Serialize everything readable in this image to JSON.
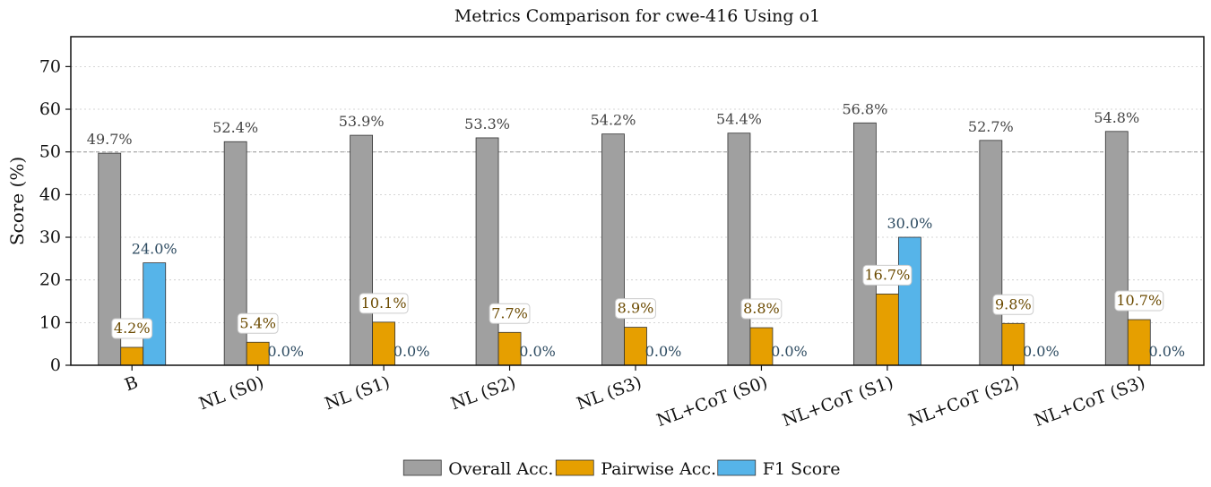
{
  "chart_data": {
    "type": "bar",
    "title": "Metrics Comparison for cwe-416 Using o1",
    "xlabel": "",
    "ylabel": "Score (%)",
    "ylim": [
      0,
      77
    ],
    "yticks": [
      0,
      10,
      20,
      30,
      40,
      50,
      60,
      70
    ],
    "grid": "horizontal dotted",
    "reference_line": 50,
    "legend_position": "bottom-center",
    "categories": [
      "B",
      "NL (S0)",
      "NL (S1)",
      "NL (S2)",
      "NL (S3)",
      "NL+CoT (S0)",
      "NL+CoT (S1)",
      "NL+CoT (S2)",
      "NL+CoT (S3)"
    ],
    "series": [
      {
        "name": "Overall Acc.",
        "color": "#a0a0a0",
        "values": [
          49.7,
          52.4,
          53.9,
          53.3,
          54.2,
          54.4,
          56.8,
          52.7,
          54.8
        ],
        "labels": [
          "49.7%",
          "52.4%",
          "53.9%",
          "53.3%",
          "54.2%",
          "54.4%",
          "56.8%",
          "52.7%",
          "54.8%"
        ]
      },
      {
        "name": "Pairwise Acc.",
        "color": "#e69f00",
        "values": [
          4.2,
          5.4,
          10.1,
          7.7,
          8.9,
          8.8,
          16.7,
          9.8,
          10.7
        ],
        "labels": [
          "4.2%",
          "5.4%",
          "10.1%",
          "7.7%",
          "8.9%",
          "8.8%",
          "16.7%",
          "9.8%",
          "10.7%"
        ]
      },
      {
        "name": "F1 Score",
        "color": "#56b4e9",
        "values": [
          24.0,
          0.0,
          0.0,
          0.0,
          0.0,
          0.0,
          30.0,
          0.0,
          0.0
        ],
        "labels": [
          "24.0%",
          "0.0%",
          "0.0%",
          "0.0%",
          "0.0%",
          "0.0%",
          "30.0%",
          "0.0%",
          "0.0%"
        ]
      }
    ]
  }
}
